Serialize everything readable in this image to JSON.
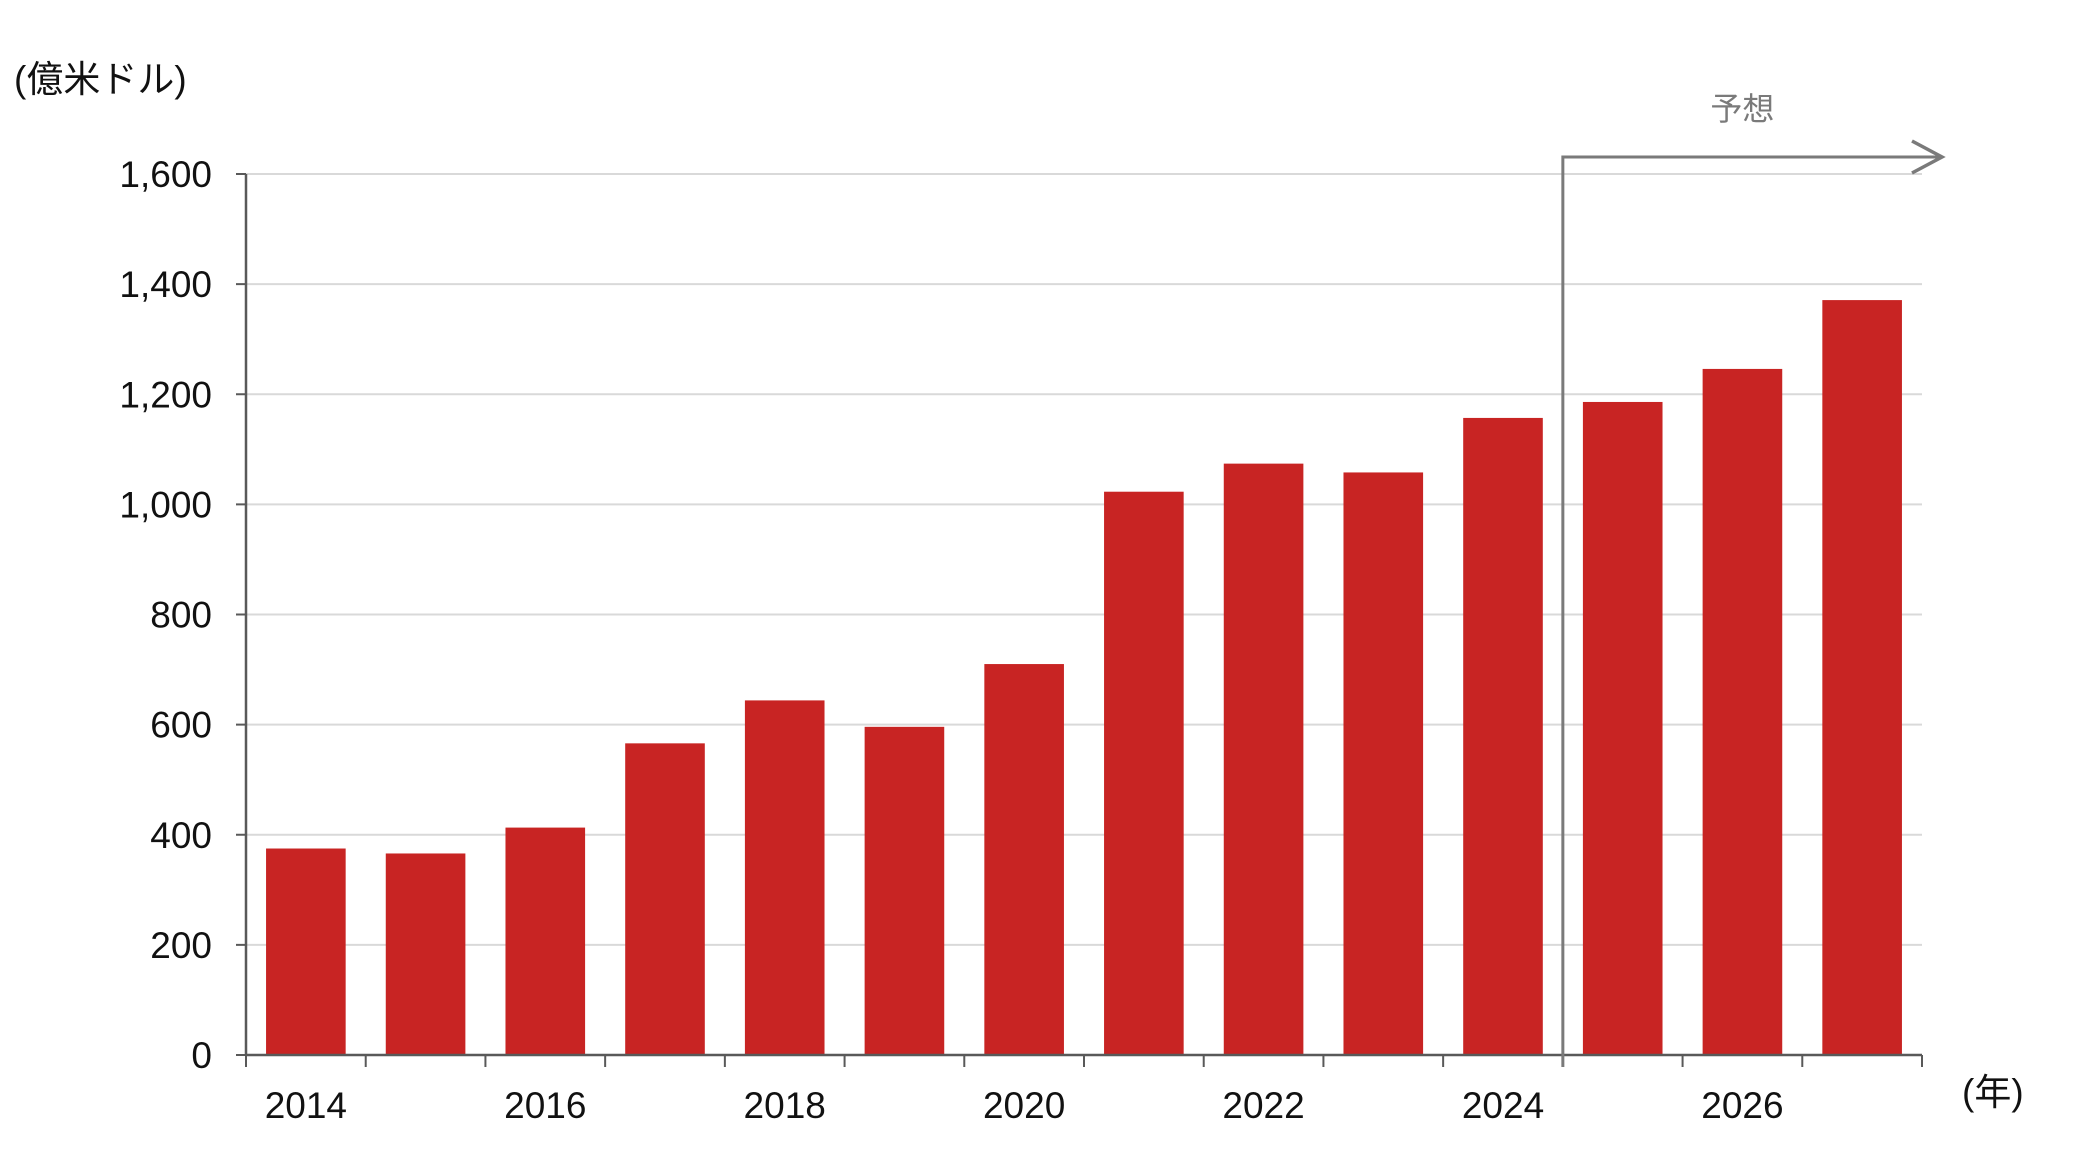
{
  "chart_data": {
    "type": "bar",
    "ylabel": "(億米ドル)",
    "xlabel": "(年)",
    "ylim": [
      0,
      1600
    ],
    "yticks": [
      0,
      200,
      400,
      600,
      800,
      1000,
      1200,
      1400,
      1600
    ],
    "ytick_labels": [
      "0",
      "200",
      "400",
      "600",
      "800",
      "1,000",
      "1,200",
      "1,400",
      "1,600"
    ],
    "categories": [
      "2014",
      "2015",
      "2016",
      "2017",
      "2018",
      "2019",
      "2020",
      "2021",
      "2022",
      "2023",
      "2024",
      "2025",
      "2026",
      "2027"
    ],
    "xtick_labels": [
      "2014",
      "",
      "2016",
      "",
      "2018",
      "",
      "2020",
      "",
      "2022",
      "",
      "2024",
      "",
      "2026",
      ""
    ],
    "values": [
      375,
      366,
      413,
      566,
      644,
      596,
      710,
      1023,
      1074,
      1058,
      1157,
      1186,
      1246,
      1371
    ],
    "forecast_label": "予想",
    "forecast_start_category": "2025",
    "grid": true,
    "colors": {
      "bar": "#c82423",
      "grid": "#d9d9d9",
      "axis": "#595959",
      "forecast_arrow": "#7a7a7a"
    }
  }
}
